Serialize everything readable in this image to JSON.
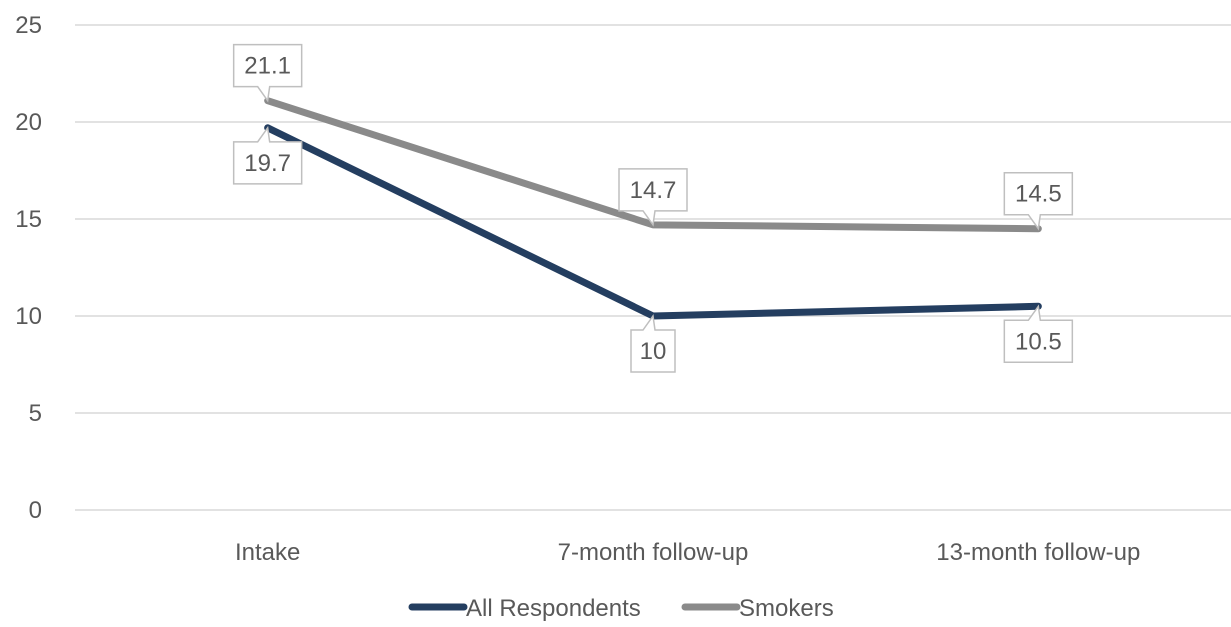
{
  "chart_data": {
    "type": "line",
    "categories": [
      "Intake",
      "7-month follow-up",
      "13-month follow-up"
    ],
    "series": [
      {
        "name": "All Respondents",
        "values": [
          19.7,
          10,
          10.5
        ],
        "color": "#243e60"
      },
      {
        "name": "Smokers",
        "values": [
          21.1,
          14.7,
          14.5
        ],
        "color": "#8a8a8a"
      }
    ],
    "y_ticks": [
      "0",
      "5",
      "10",
      "15",
      "20",
      "25"
    ],
    "data_labels": {
      "All Respondents": [
        "19.7",
        "10",
        "10.5"
      ],
      "Smokers": [
        "21.1",
        "14.7",
        "14.5"
      ]
    },
    "ylim": [
      0,
      25
    ],
    "grid": true,
    "legend": "bottom",
    "title": "",
    "xlabel": "",
    "ylabel": ""
  }
}
